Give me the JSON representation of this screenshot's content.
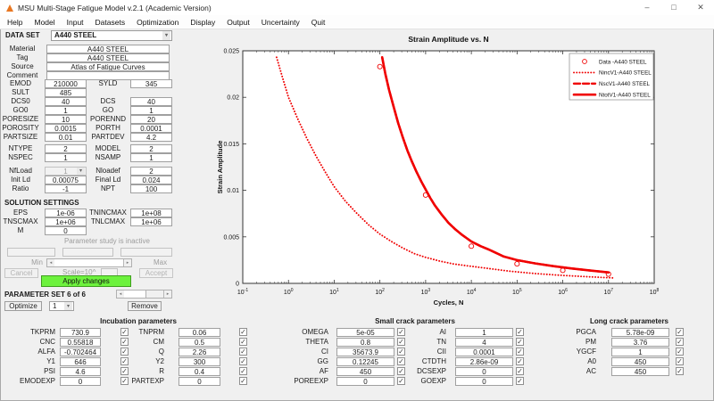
{
  "window": {
    "title": "MSU Multi-Stage Fatigue Model v.2.1 (Academic Version)",
    "minimize_icon": "–",
    "maximize_icon": "□",
    "close_icon": "✕"
  },
  "menu": [
    "Help",
    "Model",
    "Input",
    "Datasets",
    "Optimization",
    "Display",
    "Output",
    "Uncertainty",
    "Quit"
  ],
  "colors": {
    "series_red": "#f00000",
    "apply_green": "#6df23d",
    "axis_color": "#333333"
  },
  "left_panel": {
    "dataset_label": "DATA SET",
    "dataset_value": "A440 STEEL",
    "info_rows": [
      {
        "label": "Material",
        "value": "A440 STEEL"
      },
      {
        "label": "Tag",
        "value": "A440 STEEL"
      },
      {
        "label": "Source",
        "value": "Atlas of Fatigue Curves"
      },
      {
        "label": "Comment",
        "value": ""
      }
    ],
    "pairs_material": [
      [
        {
          "label": "EMOD",
          "value": "210000"
        },
        {
          "label": "SYLD",
          "value": "345"
        }
      ],
      [
        {
          "label": "SULT",
          "value": "485"
        },
        null
      ],
      [
        {
          "label": "DCS0",
          "value": "40"
        },
        {
          "label": "DCS",
          "value": "40"
        }
      ],
      [
        {
          "label": "GO0",
          "value": "1"
        },
        {
          "label": "GO",
          "value": "1"
        }
      ],
      [
        {
          "label": "PORESIZE",
          "value": "10"
        },
        {
          "label": "PORENND",
          "value": "20"
        }
      ],
      [
        {
          "label": "POROSITY",
          "value": "0.0015"
        },
        {
          "label": "PORTH",
          "value": "0.0001"
        }
      ],
      [
        {
          "label": "PARTSIZE",
          "value": "0.01"
        },
        {
          "label": "PARTDEV",
          "value": "4.2"
        }
      ]
    ],
    "pairs_model": [
      [
        {
          "label": "NTYPE",
          "value": "2"
        },
        {
          "label": "MODEL",
          "value": "2"
        }
      ],
      [
        {
          "label": "NSPEC",
          "value": "1"
        },
        {
          "label": "NSAMP",
          "value": "1"
        }
      ]
    ],
    "pairs_load": [
      [
        {
          "label": "NfLoad",
          "value": "1",
          "dropdown": true,
          "disabled": true
        },
        {
          "label": "Nloadef",
          "value": "2"
        }
      ],
      [
        {
          "label": "Init Ld",
          "value": "0.00075"
        },
        {
          "label": "Final Ld",
          "value": "0.024"
        }
      ],
      [
        {
          "label": "Ratio",
          "value": "-1"
        },
        {
          "label": "NPT",
          "value": "100"
        }
      ]
    ],
    "solution_settings_title": "SOLUTION SETTINGS",
    "pairs_solution": [
      [
        {
          "label": "EPS",
          "value": "1e-06"
        },
        {
          "label": "TNINCMAX",
          "value": "1e+08"
        }
      ],
      [
        {
          "label": "TNSCMAX",
          "value": "1e+06"
        },
        {
          "label": "TNLCMAX",
          "value": "1e+06"
        }
      ],
      [
        {
          "label": "M",
          "value": "0"
        },
        null
      ]
    ],
    "param_study": {
      "status": "Parameter study is inactive",
      "min_label": "Min",
      "max_label": "Max",
      "cancel_label": "Cancel",
      "scale_label": "Scale=10^",
      "accept_label": "Accept",
      "apply_label": "Apply changes"
    },
    "param_set": {
      "title": "PARAMETER SET 6 of 6",
      "optimize_label": "Optimize",
      "optimize_value": "1",
      "remove_label": "Remove"
    }
  },
  "chart_data": {
    "type": "line",
    "title": "Strain Amplitude vs. N",
    "xlabel": "Cycles, N",
    "ylabel": "Strain Amplitude",
    "x_scale": "log",
    "xlim_log10": [
      -1,
      8
    ],
    "ylim": [
      0,
      0.025
    ],
    "yticks": [
      0,
      0.005,
      0.01,
      0.015,
      0.02,
      0.025
    ],
    "ytick_labels": [
      "0",
      "0.005",
      "0.01",
      "0.015",
      "0.02",
      "0.025"
    ],
    "xtick_exponents": [
      -1,
      0,
      1,
      2,
      3,
      4,
      5,
      6,
      7,
      8
    ],
    "line_color": "#f00000",
    "legend_position": "top-right",
    "grid": false,
    "legend": [
      {
        "label": "Data -A440 STEEL",
        "style": "circle"
      },
      {
        "label": "NincV1-A440 STEEL",
        "style": "dotted"
      },
      {
        "label": "NscV1-A440 STEEL",
        "style": "dashed"
      },
      {
        "label": "NtotV1-A440 STEEL",
        "style": "solid"
      }
    ],
    "series": [
      {
        "name": "NincV1-A440 STEEL",
        "style": "dotted",
        "points": [
          [
            -0.26,
            0.0243
          ],
          [
            -0.13,
            0.0221
          ],
          [
            0,
            0.02
          ],
          [
            0.2,
            0.0177
          ],
          [
            0.4,
            0.0156
          ],
          [
            0.6,
            0.0137
          ],
          [
            0.8,
            0.012
          ],
          [
            1.0,
            0.0104
          ],
          [
            1.25,
            0.0088
          ],
          [
            1.5,
            0.0075
          ],
          [
            1.75,
            0.0063
          ],
          [
            2.0,
            0.0053
          ],
          [
            2.25,
            0.0045
          ],
          [
            2.5,
            0.0038
          ],
          [
            2.75,
            0.0032
          ],
          [
            3.0,
            0.0028
          ],
          [
            3.3,
            0.0024
          ],
          [
            3.6,
            0.0021
          ],
          [
            3.9,
            0.0019
          ],
          [
            4.3,
            0.00165
          ],
          [
            4.85,
            0.0013
          ],
          [
            5.4,
            0.00105
          ],
          [
            6.0,
            0.00085
          ],
          [
            6.6,
            0.0007
          ],
          [
            7.1,
            0.00058
          ]
        ]
      },
      {
        "name": "NscV1-A440 STEEL",
        "style": "dashed",
        "points": [
          [
            2.05,
            0.0243
          ],
          [
            2.12,
            0.0225
          ],
          [
            2.2,
            0.0208
          ],
          [
            2.3,
            0.019
          ],
          [
            2.4,
            0.0172
          ],
          [
            2.5,
            0.0157
          ],
          [
            2.6,
            0.0143
          ],
          [
            2.7,
            0.0131
          ],
          [
            2.8,
            0.012
          ],
          [
            2.9,
            0.011
          ],
          [
            3.0,
            0.0101
          ],
          [
            3.1,
            0.0092
          ],
          [
            3.2,
            0.0084
          ],
          [
            3.35,
            0.0074
          ],
          [
            3.5,
            0.0065
          ],
          [
            3.65,
            0.0058
          ],
          [
            3.8,
            0.0052
          ],
          [
            4.0,
            0.0045
          ],
          [
            4.2,
            0.004
          ],
          [
            4.4,
            0.0036
          ],
          [
            4.7,
            0.0029
          ],
          [
            5.0,
            0.0025
          ],
          [
            5.4,
            0.00215
          ],
          [
            5.8,
            0.00185
          ],
          [
            6.2,
            0.0016
          ],
          [
            6.6,
            0.00138
          ],
          [
            7.0,
            0.00118
          ]
        ]
      },
      {
        "name": "NtotV1-A440 STEEL",
        "style": "solid",
        "points": [
          [
            2.05,
            0.0243
          ],
          [
            2.12,
            0.0225
          ],
          [
            2.2,
            0.0208
          ],
          [
            2.3,
            0.019
          ],
          [
            2.4,
            0.0172
          ],
          [
            2.5,
            0.0157
          ],
          [
            2.6,
            0.0143
          ],
          [
            2.7,
            0.0131
          ],
          [
            2.8,
            0.012
          ],
          [
            2.9,
            0.011
          ],
          [
            3.0,
            0.0101
          ],
          [
            3.1,
            0.0092
          ],
          [
            3.2,
            0.0084
          ],
          [
            3.35,
            0.0074
          ],
          [
            3.5,
            0.0065
          ],
          [
            3.65,
            0.0058
          ],
          [
            3.8,
            0.0052
          ],
          [
            4.0,
            0.0045
          ],
          [
            4.2,
            0.004
          ],
          [
            4.4,
            0.0036
          ],
          [
            4.7,
            0.0029
          ],
          [
            5.0,
            0.0025
          ],
          [
            5.4,
            0.00215
          ],
          [
            5.8,
            0.00185
          ],
          [
            6.2,
            0.0016
          ],
          [
            6.6,
            0.00138
          ],
          [
            7.0,
            0.00118
          ]
        ]
      },
      {
        "name": "Data -A440 STEEL",
        "style": "circle",
        "points": [
          [
            2,
            0.0233
          ],
          [
            3,
            0.0095
          ],
          [
            4,
            0.004
          ],
          [
            5,
            0.0021
          ],
          [
            6,
            0.0014
          ],
          [
            7,
            0.001
          ]
        ]
      }
    ]
  },
  "bottom_groups": [
    {
      "title": "Incubation parameters",
      "cols": [
        [
          {
            "label": "TKPRM",
            "value": "730.9"
          },
          {
            "label": "CNC",
            "value": "0.55818"
          },
          {
            "label": "ALFA",
            "value": "-0.702464"
          },
          {
            "label": "Y1",
            "value": "646"
          },
          {
            "label": "PSI",
            "value": "4.6"
          },
          {
            "label": "EMODEXP",
            "value": "0"
          }
        ],
        [
          {
            "label": "TNPRM",
            "value": "0.06"
          },
          {
            "label": "CM",
            "value": "0.5"
          },
          {
            "label": "Q",
            "value": "2.26"
          },
          {
            "label": "Y2",
            "value": "300"
          },
          {
            "label": "R",
            "value": "0.4"
          },
          {
            "label": "PARTEXP",
            "value": "0"
          }
        ]
      ]
    },
    {
      "title": "Small crack parameters",
      "cols": [
        [
          {
            "label": "OMEGA",
            "value": "5e-05"
          },
          {
            "label": "THETA",
            "value": "0.8"
          },
          {
            "label": "CI",
            "value": "35673.9"
          },
          {
            "label": "GG",
            "value": "0.12245"
          },
          {
            "label": "AF",
            "value": "450"
          },
          {
            "label": "POREEXP",
            "value": "0"
          }
        ],
        [
          {
            "label": "AI",
            "value": "1"
          },
          {
            "label": "TN",
            "value": "4"
          },
          {
            "label": "CII",
            "value": "0.0001"
          },
          {
            "label": "CTDTH",
            "value": "2.86e-09"
          },
          {
            "label": "DCSEXP",
            "value": "0"
          },
          {
            "label": "GOEXP",
            "value": "0"
          }
        ]
      ]
    },
    {
      "title": "Long crack parameters",
      "cols": [
        [
          {
            "label": "PGCA",
            "value": "5.78e-09"
          },
          {
            "label": "PM",
            "value": "3.76"
          },
          {
            "label": "YGCF",
            "value": "1"
          },
          {
            "label": "A0",
            "value": "450"
          },
          {
            "label": "AC",
            "value": "450"
          }
        ]
      ]
    }
  ]
}
